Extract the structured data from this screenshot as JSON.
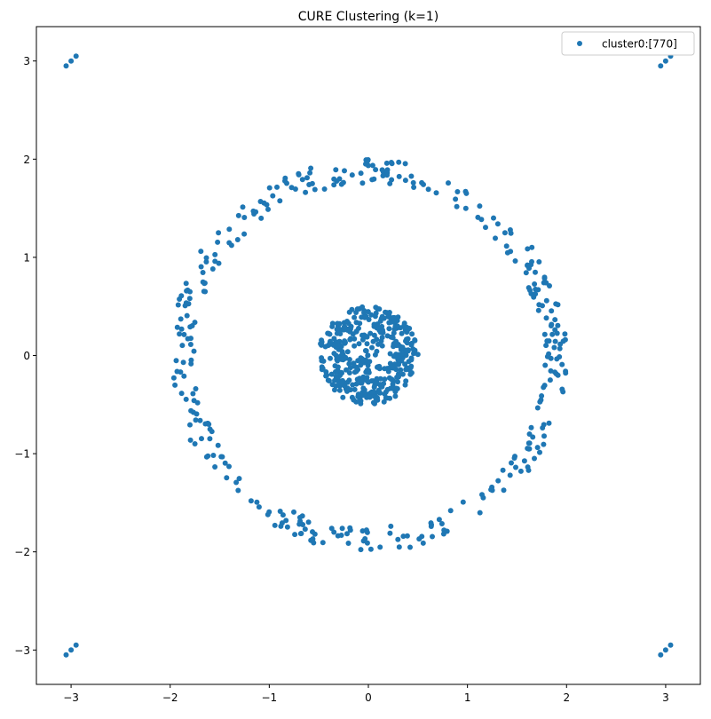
{
  "chart_data": {
    "type": "scatter",
    "title": "CURE Clustering (k=1)",
    "xlabel": "",
    "ylabel": "",
    "xlim": [
      -3.35,
      3.35
    ],
    "ylim": [
      -3.35,
      3.35
    ],
    "xticks": [
      -3,
      -2,
      -1,
      0,
      1,
      2,
      3
    ],
    "yticks": [
      -3,
      -2,
      -1,
      0,
      1,
      2,
      3
    ],
    "xtick_labels": [
      "−3",
      "−2",
      "−1",
      "0",
      "1",
      "2",
      "3"
    ],
    "ytick_labels": [
      "−3",
      "−2",
      "−1",
      "0",
      "1",
      "2",
      "3"
    ],
    "grid": false,
    "legend": {
      "placement": "top-right",
      "entries": [
        "cluster0:[770]"
      ]
    },
    "colors": {
      "series": "#1f77b4"
    },
    "series": [
      {
        "name": "cluster0:[770]",
        "total_points": 770,
        "structure": {
          "inner_disk": {
            "center": [
              0,
              0
            ],
            "radius": 0.5,
            "approx_points": 400
          },
          "outer_ring": {
            "center": [
              0,
              0
            ],
            "inner_radius": 1.75,
            "outer_radius": 2.0,
            "approx_points": 358
          },
          "corner_clusters": [
            {
              "points": [
                [
                  -3.05,
                  2.95
                ],
                [
                  -3.0,
                  3.0
                ],
                [
                  -2.95,
                  3.05
                ]
              ]
            },
            {
              "points": [
                [
                  2.95,
                  2.95
                ],
                [
                  3.0,
                  3.0
                ],
                [
                  3.05,
                  3.05
                ]
              ]
            },
            {
              "points": [
                [
                  -3.05,
                  -3.05
                ],
                [
                  -3.0,
                  -3.0
                ],
                [
                  -2.95,
                  -2.95
                ]
              ]
            },
            {
              "points": [
                [
                  2.95,
                  -3.05
                ],
                [
                  3.0,
                  -3.0
                ],
                [
                  3.05,
                  -2.95
                ]
              ]
            }
          ]
        }
      }
    ]
  }
}
